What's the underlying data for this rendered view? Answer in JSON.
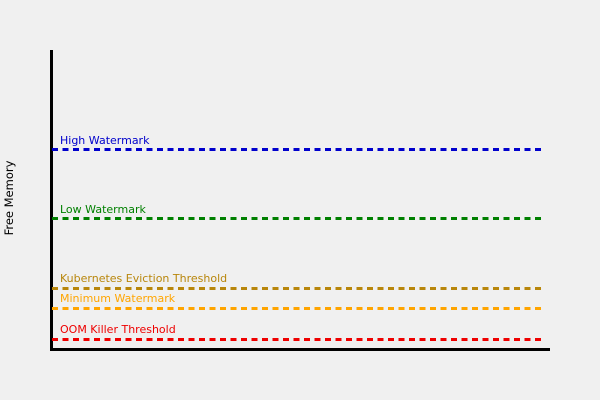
{
  "canvas": {
    "background": "#f0f0f0"
  },
  "chart_data": {
    "type": "line",
    "title": "",
    "xlabel": "",
    "ylabel": "Free Memory",
    "x_ticks": [],
    "y_ticks": [],
    "grid": false,
    "legend_position": "inline-labels-above-lines",
    "axis_color": "#000000",
    "ylim": [
      0,
      1
    ],
    "thresholds": [
      {
        "label": "High Watermark",
        "color": "#0000cc",
        "line_style": "dashed",
        "level": 0.666
      },
      {
        "label": "Low Watermark",
        "color": "#008000",
        "line_style": "dashed",
        "level": 0.435
      },
      {
        "label": "Kubernetes Eviction Threshold",
        "color": "#b8860b",
        "line_style": "dashed",
        "level": 0.204
      },
      {
        "label": "Minimum Watermark",
        "color": "#ffa500",
        "line_style": "dashed",
        "level": 0.137
      },
      {
        "label": "OOM Killer Threshold",
        "color": "#ee0000",
        "line_style": "dashed",
        "level": 0.033
      }
    ]
  }
}
